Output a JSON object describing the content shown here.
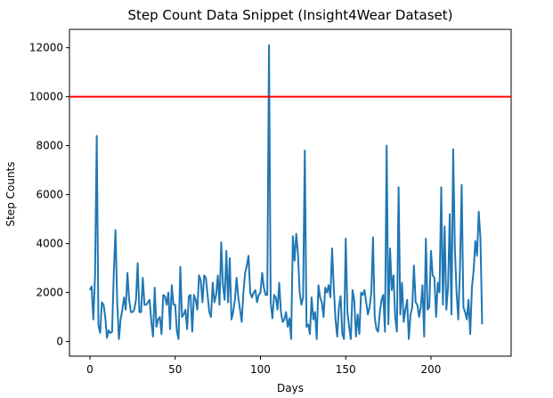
{
  "chart_data": {
    "type": "line",
    "title": "Step Count Data Snippet (Insight4Wear Dataset)",
    "xlabel": "Days",
    "ylabel": "Step Counts",
    "xlim": [
      -12,
      247
    ],
    "ylim": [
      -600,
      12750
    ],
    "xticks": [
      0,
      50,
      100,
      150,
      200
    ],
    "yticks": [
      0,
      2000,
      4000,
      6000,
      8000,
      10000,
      12000
    ],
    "grid": false,
    "legend": "none",
    "series_color": "#1f77b4",
    "threshold_color": "#ff0000",
    "threshold": 10000,
    "series": [
      {
        "values": [
          2100,
          2250,
          900,
          2700,
          8400,
          650,
          350,
          1600,
          1500,
          1000,
          150,
          450,
          350,
          400,
          2800,
          4550,
          1600,
          100,
          900,
          1300,
          1800,
          1300,
          2800,
          1700,
          1200,
          1200,
          1300,
          1700,
          3200,
          1200,
          1200,
          2600,
          1500,
          1500,
          1600,
          1700,
          800,
          200,
          2200,
          600,
          900,
          1000,
          300,
          1900,
          1850,
          1500,
          2000,
          500,
          2300,
          1500,
          1500,
          400,
          100,
          3050,
          1000,
          1100,
          1300,
          500,
          1850,
          1900,
          400,
          1900,
          1700,
          1300,
          2700,
          2500,
          1600,
          2700,
          2600,
          1900,
          1200,
          1000,
          2400,
          1600,
          1900,
          2700,
          1500,
          4050,
          2300,
          1700,
          3700,
          1600,
          3400,
          900,
          1200,
          1700,
          2600,
          1800,
          1300,
          800,
          2000,
          2800,
          3100,
          3500,
          2000,
          1800,
          2000,
          2100,
          1600,
          1900,
          2000,
          2800,
          2200,
          1900,
          1900,
          12100,
          1600,
          950,
          1900,
          1800,
          1300,
          2400,
          1200,
          800,
          900,
          1200,
          600,
          950,
          100,
          4300,
          3300,
          4400,
          3600,
          2000,
          1500,
          1800,
          7800,
          600,
          700,
          300,
          1800,
          900,
          1200,
          100,
          2300,
          1800,
          1600,
          1000,
          2200,
          2000,
          2300,
          1800,
          3800,
          2200,
          900,
          200,
          1400,
          1850,
          300,
          100,
          4200,
          1200,
          600,
          100,
          2100,
          1700,
          200,
          1100,
          300,
          2000,
          1900,
          2100,
          1600,
          1100,
          1400,
          2000,
          4250,
          1000,
          500,
          400,
          1200,
          1700,
          1900,
          400,
          8000,
          700,
          3800,
          2100,
          2700,
          1000,
          400,
          6300,
          1100,
          2400,
          800,
          1300,
          1700,
          100,
          1100,
          1400,
          3100,
          1600,
          1500,
          1000,
          1400,
          2300,
          200,
          4200,
          1300,
          1400,
          3700,
          2700,
          2600,
          1000,
          2400,
          2000,
          6300,
          1500,
          4700,
          1300,
          2200,
          5200,
          1100,
          7850,
          3800,
          2000,
          900,
          3000,
          6400,
          1400,
          1200,
          900,
          1700,
          300,
          2200,
          2900,
          4100,
          3500,
          5300,
          4200,
          700
        ]
      }
    ]
  }
}
